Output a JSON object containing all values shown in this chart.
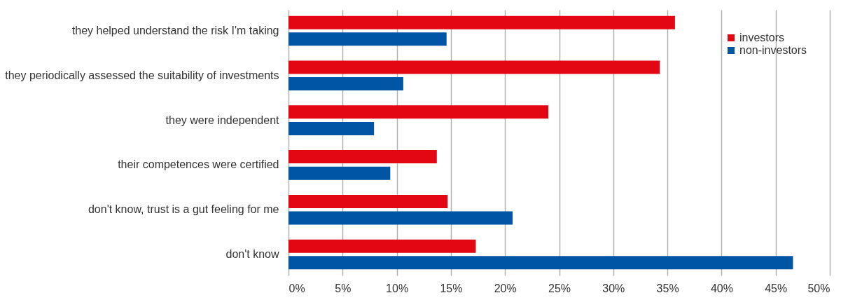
{
  "chart_data": {
    "type": "bar",
    "orientation": "horizontal",
    "categories": [
      "they helped understand the risk I'm taking",
      "they periodically assessed the suitability of investments",
      "they were independent",
      "their competences were certified",
      "don't know, trust is a gut feeling for me",
      "don't know"
    ],
    "series": [
      {
        "name": "investors",
        "color": "#e30613",
        "values": [
          35.7,
          34.3,
          24.0,
          13.7,
          14.7,
          17.3
        ]
      },
      {
        "name": "non-investors",
        "color": "#0055a4",
        "values": [
          14.6,
          10.6,
          7.9,
          9.4,
          20.7,
          46.6
        ]
      }
    ],
    "xlim": [
      0,
      50
    ],
    "xticks": [
      {
        "value": 0,
        "label": "0%"
      },
      {
        "value": 5,
        "label": "5%"
      },
      {
        "value": 10,
        "label": "10%"
      },
      {
        "value": 15,
        "label": "15%"
      },
      {
        "value": 20,
        "label": "20%"
      },
      {
        "value": 25,
        "label": "25%"
      },
      {
        "value": 30,
        "label": "30%"
      },
      {
        "value": 35,
        "label": "35%"
      },
      {
        "value": 40,
        "label": "40%"
      },
      {
        "value": 45,
        "label": "45%"
      },
      {
        "value": 50,
        "label": "50%"
      }
    ],
    "grid": "x",
    "legend": "top right"
  }
}
